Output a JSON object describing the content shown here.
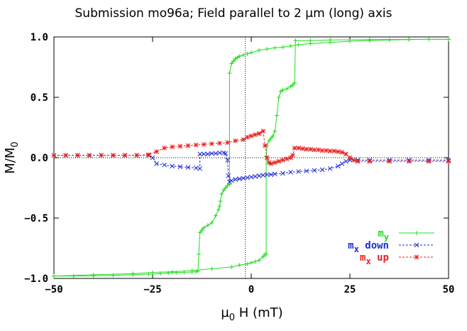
{
  "chart_data": {
    "type": "line",
    "title": "Submission mo96a; Field parallel to 2 µm (long) axis",
    "xlabel": "µ0 H (mT)",
    "ylabel": "M/M0",
    "xlim": [
      -50,
      50
    ],
    "ylim": [
      -1.0,
      1.0
    ],
    "xticks": [
      "−50",
      "−25",
      "0",
      "25",
      "50"
    ],
    "yticks": [
      "−1.0",
      "−0.5",
      "0.0",
      "0.5",
      "1.0"
    ],
    "zero_lines": true,
    "legend_position": "bottom-right",
    "series": [
      {
        "name": "my",
        "label_main": "m",
        "label_sub": "y",
        "label_rest": "",
        "color": "#22dd22",
        "marker": "plus",
        "line_style": "solid",
        "points": [
          [
            -50,
            -0.98
          ],
          [
            -45,
            -0.98
          ],
          [
            -40,
            -0.978
          ],
          [
            -35,
            -0.975
          ],
          [
            -30,
            -0.97
          ],
          [
            -26,
            -0.965
          ],
          [
            -23,
            -0.96
          ],
          [
            -21,
            -0.955
          ],
          [
            -19,
            -0.952
          ],
          [
            -17,
            -0.95
          ],
          [
            -15,
            -0.947
          ],
          [
            -14,
            -0.945
          ],
          [
            -13.5,
            -0.94
          ],
          [
            -13.3,
            -0.8
          ],
          [
            -13,
            -0.62
          ],
          [
            -12.5,
            -0.6
          ],
          [
            -12,
            -0.58
          ],
          [
            -11,
            -0.56
          ],
          [
            -10,
            -0.54
          ],
          [
            -9,
            -0.48
          ],
          [
            -8.3,
            -0.43
          ],
          [
            -8,
            -0.4
          ],
          [
            -7.8,
            -0.36
          ],
          [
            -7.5,
            -0.3
          ],
          [
            -7,
            -0.27
          ],
          [
            -6.5,
            -0.25
          ],
          [
            -6,
            -0.23
          ],
          [
            -5.5,
            -0.22
          ],
          [
            -5.5,
            0.7
          ],
          [
            -5,
            0.78
          ],
          [
            -4.5,
            0.8
          ],
          [
            -4,
            0.82
          ],
          [
            -3.5,
            0.83
          ],
          [
            -3,
            0.84
          ],
          [
            -2,
            0.85
          ],
          [
            -1,
            0.86
          ],
          [
            0,
            0.87
          ],
          [
            2,
            0.89
          ],
          [
            4,
            0.9
          ],
          [
            6,
            0.91
          ],
          [
            8,
            0.915
          ],
          [
            10,
            0.925
          ],
          [
            12,
            0.935
          ],
          [
            15,
            0.945
          ],
          [
            20,
            0.955
          ],
          [
            25,
            0.965
          ],
          [
            30,
            0.97
          ],
          [
            35,
            0.975
          ],
          [
            40,
            0.978
          ],
          [
            45,
            0.98
          ],
          [
            50,
            0.98
          ]
        ]
      },
      {
        "name": "my (return branch)",
        "label_main": "",
        "label_sub": "",
        "label_rest": "",
        "color": "#22dd22",
        "marker": "plus",
        "line_style": "solid",
        "hide_in_legend": true,
        "points": [
          [
            -50,
            -0.98
          ],
          [
            -40,
            -0.97
          ],
          [
            -30,
            -0.96
          ],
          [
            -25,
            -0.95
          ],
          [
            -20,
            -0.945
          ],
          [
            -15,
            -0.935
          ],
          [
            -10,
            -0.92
          ],
          [
            -5,
            -0.905
          ],
          [
            -3,
            -0.89
          ],
          [
            -1,
            -0.88
          ],
          [
            0,
            -0.87
          ],
          [
            1,
            -0.86
          ],
          [
            2,
            -0.85
          ],
          [
            3,
            -0.82
          ],
          [
            3.5,
            -0.8
          ],
          [
            3.8,
            -0.8
          ],
          [
            3.8,
            0.01
          ],
          [
            4,
            0.1
          ],
          [
            4.5,
            0.14
          ],
          [
            5,
            0.16
          ],
          [
            5.5,
            0.18
          ],
          [
            6,
            0.22
          ],
          [
            6.5,
            0.35
          ],
          [
            7,
            0.5
          ],
          [
            7.5,
            0.55
          ],
          [
            8,
            0.56
          ],
          [
            9,
            0.57
          ],
          [
            10,
            0.59
          ],
          [
            10.5,
            0.6
          ],
          [
            11,
            0.62
          ],
          [
            11.2,
            0.97
          ],
          [
            15,
            0.97
          ],
          [
            20,
            0.975
          ],
          [
            30,
            0.978
          ],
          [
            40,
            0.98
          ],
          [
            50,
            0.98
          ]
        ]
      },
      {
        "name": "mx down",
        "label_main": "m",
        "label_sub": "x",
        "label_rest": " down",
        "color": "#1f2fd6",
        "marker": "x",
        "line_style": "dashed",
        "points": [
          [
            -50,
            0.02
          ],
          [
            -47,
            0.02
          ],
          [
            -44,
            0.02
          ],
          [
            -41,
            0.02
          ],
          [
            -38,
            0.02
          ],
          [
            -35,
            0.02
          ],
          [
            -32,
            0.02
          ],
          [
            -29,
            0.02
          ],
          [
            -26,
            0.02
          ],
          [
            -25,
            0.0
          ],
          [
            -24,
            -0.05
          ],
          [
            -22,
            -0.06
          ],
          [
            -20,
            -0.07
          ],
          [
            -18,
            -0.075
          ],
          [
            -16,
            -0.08
          ],
          [
            -14,
            -0.085
          ],
          [
            -13,
            -0.09
          ],
          [
            -13,
            0.03
          ],
          [
            -12,
            0.03
          ],
          [
            -11,
            0.03
          ],
          [
            -10,
            0.035
          ],
          [
            -9,
            0.035
          ],
          [
            -8,
            0.04
          ],
          [
            -7,
            0.04
          ],
          [
            -6.5,
            0.035
          ],
          [
            -6,
            -0.02
          ],
          [
            -5.8,
            -0.15
          ],
          [
            -5.5,
            -0.2
          ],
          [
            -5,
            -0.19
          ],
          [
            -4,
            -0.18
          ],
          [
            -3,
            -0.175
          ],
          [
            -2,
            -0.17
          ],
          [
            -1,
            -0.165
          ],
          [
            0,
            -0.16
          ],
          [
            1,
            -0.155
          ],
          [
            2,
            -0.15
          ],
          [
            3,
            -0.145
          ],
          [
            4,
            -0.14
          ],
          [
            5,
            -0.14
          ],
          [
            6,
            -0.135
          ],
          [
            8,
            -0.13
          ],
          [
            10,
            -0.12
          ],
          [
            12,
            -0.115
          ],
          [
            14,
            -0.11
          ],
          [
            16,
            -0.105
          ],
          [
            18,
            -0.1
          ],
          [
            20,
            -0.09
          ],
          [
            22,
            -0.07
          ],
          [
            23,
            -0.05
          ],
          [
            24,
            -0.03
          ],
          [
            25,
            -0.02
          ],
          [
            27,
            -0.02
          ],
          [
            30,
            -0.02
          ],
          [
            35,
            -0.02
          ],
          [
            40,
            -0.02
          ],
          [
            45,
            -0.02
          ],
          [
            50,
            -0.02
          ]
        ]
      },
      {
        "name": "mx up",
        "label_main": "m",
        "label_sub": "x",
        "label_rest": " up",
        "color": "#e82020",
        "marker": "star",
        "line_style": "dashed",
        "points": [
          [
            -50,
            0.02
          ],
          [
            -47,
            0.02
          ],
          [
            -44,
            0.02
          ],
          [
            -41,
            0.02
          ],
          [
            -38,
            0.02
          ],
          [
            -35,
            0.02
          ],
          [
            -32,
            0.02
          ],
          [
            -29,
            0.02
          ],
          [
            -26,
            0.025
          ],
          [
            -24,
            0.05
          ],
          [
            -22,
            0.08
          ],
          [
            -20,
            0.09
          ],
          [
            -18,
            0.095
          ],
          [
            -16,
            0.1
          ],
          [
            -14,
            0.105
          ],
          [
            -12,
            0.11
          ],
          [
            -10,
            0.115
          ],
          [
            -8,
            0.12
          ],
          [
            -6,
            0.125
          ],
          [
            -4,
            0.14
          ],
          [
            -2,
            0.15
          ],
          [
            -1,
            0.17
          ],
          [
            0,
            0.18
          ],
          [
            1,
            0.19
          ],
          [
            2,
            0.2
          ],
          [
            3,
            0.22
          ],
          [
            3.5,
            0.1
          ],
          [
            4,
            0.0
          ],
          [
            4.5,
            -0.04
          ],
          [
            5,
            -0.05
          ],
          [
            6,
            -0.04
          ],
          [
            7,
            -0.03
          ],
          [
            8,
            -0.02
          ],
          [
            9,
            -0.01
          ],
          [
            10,
            0.0
          ],
          [
            10.5,
            0.02
          ],
          [
            11,
            0.08
          ],
          [
            12,
            0.08
          ],
          [
            13,
            0.075
          ],
          [
            14,
            0.07
          ],
          [
            15,
            0.07
          ],
          [
            16,
            0.065
          ],
          [
            17,
            0.065
          ],
          [
            18,
            0.06
          ],
          [
            19,
            0.06
          ],
          [
            20,
            0.055
          ],
          [
            21,
            0.055
          ],
          [
            22,
            0.05
          ],
          [
            23,
            0.045
          ],
          [
            24,
            0.03
          ],
          [
            25,
            0.0
          ],
          [
            26,
            -0.02
          ],
          [
            27,
            -0.03
          ],
          [
            30,
            -0.03
          ],
          [
            35,
            -0.03
          ],
          [
            40,
            -0.03
          ],
          [
            45,
            -0.03
          ],
          [
            50,
            -0.03
          ]
        ]
      }
    ]
  }
}
